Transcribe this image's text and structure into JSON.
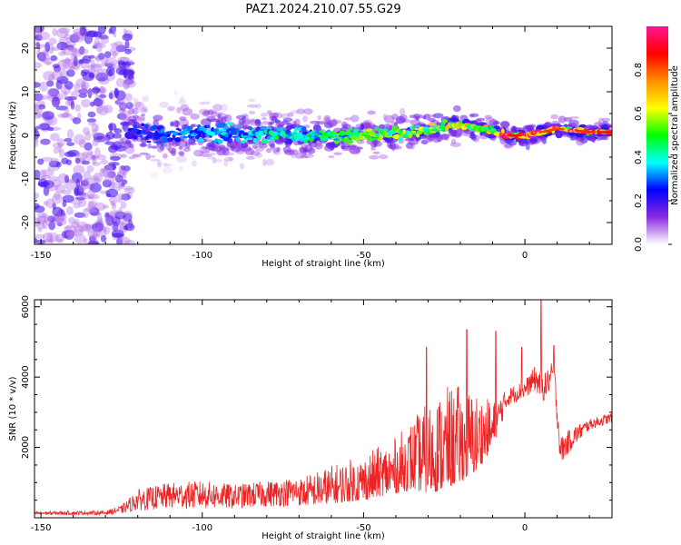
{
  "title": "PAZ1.2024.210.07.55.G29",
  "chart_data": [
    {
      "type": "heatmap",
      "title": "PAZ1.2024.210.07.55.G29",
      "xlabel": "Height of straight line (km)",
      "ylabel": "Frequency (Hz)",
      "xlim": [
        -152,
        27
      ],
      "ylim": [
        -25,
        25
      ],
      "x_ticks": [
        -150,
        -100,
        -50,
        0
      ],
      "y_ticks": [
        -20,
        -10,
        0,
        10,
        20
      ],
      "colorbar": {
        "label": "Normalized spectral amplitude",
        "range": [
          0,
          1
        ],
        "ticks": [
          0.0,
          0.2,
          0.4,
          0.6,
          0.8
        ],
        "colormap": [
          "#ffffff",
          "#8a2be2",
          "#0000ff",
          "#00ffff",
          "#00ff00",
          "#ffff00",
          "#ff8c00",
          "#ff0000",
          "#ff1493"
        ]
      },
      "ridge": {
        "description_points": [
          [
            -120,
            0.5
          ],
          [
            -100,
            0.5
          ],
          [
            -80,
            0.3
          ],
          [
            -60,
            0.0
          ],
          [
            -40,
            0.3
          ],
          [
            -20,
            2.5
          ],
          [
            -10,
            1.0
          ],
          [
            -5,
            0.0
          ],
          [
            0,
            0.0
          ],
          [
            10,
            1.5
          ],
          [
            20,
            0.8
          ],
          [
            27,
            0.7
          ]
        ],
        "peak_amplitude_region_km": [
          -7,
          27
        ]
      }
    },
    {
      "type": "line",
      "xlabel": "Height of straight line (km)",
      "ylabel": "SNR (10 * v/v)",
      "xlim": [
        -152,
        27
      ],
      "ylim": [
        0,
        6200
      ],
      "x_ticks": [
        -150,
        -100,
        -50,
        0
      ],
      "y_ticks": [
        2000,
        4000,
        6000
      ],
      "color": "#ee2222",
      "envelope": [
        [
          -152,
          80,
          180
        ],
        [
          -130,
          80,
          200
        ],
        [
          -125,
          120,
          350
        ],
        [
          -120,
          200,
          800
        ],
        [
          -110,
          250,
          1000
        ],
        [
          -100,
          250,
          1050
        ],
        [
          -90,
          250,
          950
        ],
        [
          -80,
          300,
          1050
        ],
        [
          -70,
          350,
          1150
        ],
        [
          -60,
          400,
          1500
        ],
        [
          -50,
          500,
          1800
        ],
        [
          -40,
          700,
          2300
        ],
        [
          -35,
          800,
          2800
        ],
        [
          -30,
          700,
          3300
        ],
        [
          -25,
          800,
          3700
        ],
        [
          -20,
          1000,
          3800
        ],
        [
          -15,
          1300,
          3600
        ],
        [
          -10,
          2000,
          3300
        ],
        [
          -5,
          3200,
          3700
        ],
        [
          0,
          3400,
          3900
        ],
        [
          3,
          3600,
          4300
        ],
        [
          6,
          3300,
          4100
        ],
        [
          9,
          3800,
          4500
        ],
        [
          11,
          1500,
          2300
        ],
        [
          15,
          2000,
          2600
        ],
        [
          20,
          2500,
          2800
        ],
        [
          27,
          2700,
          3000
        ]
      ],
      "spikes": [
        [
          -30.5,
          4850
        ],
        [
          -18,
          5350
        ],
        [
          -9,
          5300
        ],
        [
          -1,
          4850
        ],
        [
          5,
          6200
        ],
        [
          9,
          4900
        ]
      ]
    }
  ]
}
